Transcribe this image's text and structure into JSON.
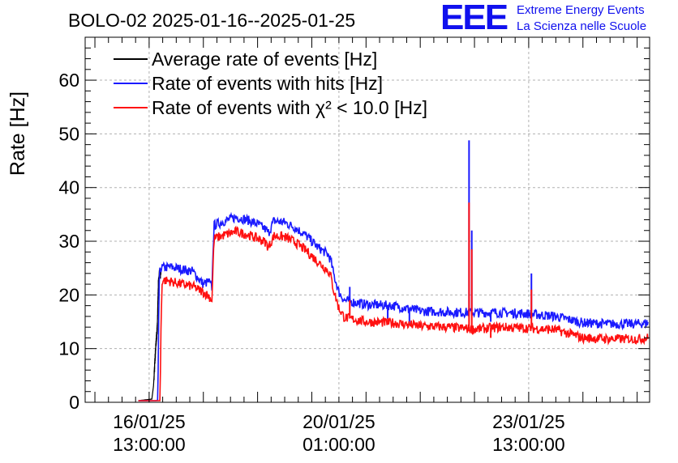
{
  "chart_data": {
    "type": "line",
    "title": "BOLO-02 2025-01-16--2025-01-25",
    "ylabel": "Rate [Hz]",
    "xlabel": "",
    "ylim": [
      0,
      68
    ],
    "y_ticks": [
      0,
      10,
      20,
      30,
      40,
      50,
      60
    ],
    "x_ticks": [
      {
        "line1": "16/01/25",
        "line2": "13:00:00",
        "t": 1.0
      },
      {
        "line1": "20/01/25",
        "line2": "01:00:00",
        "t": 4.5
      },
      {
        "line1": "23/01/25",
        "line2": "13:00:00",
        "t": 8.0
      }
    ],
    "x_unit": "days since 2025-01-15 13:00:00",
    "xlim": [
      -0.18,
      10.23
    ],
    "grid": true,
    "legend_position": "top-left",
    "series": [
      {
        "name": "Average rate of events [Hz]",
        "color": "#000000",
        "points": [
          [
            0.8,
            0.3
          ],
          [
            1.05,
            0.6
          ],
          [
            1.08,
            3
          ],
          [
            1.12,
            10
          ],
          [
            1.15,
            14
          ],
          [
            1.17,
            22
          ],
          [
            1.19,
            24
          ],
          [
            1.22,
            24
          ]
        ]
      },
      {
        "name": "Rate of events with hits [Hz]",
        "color": "#1a1aff",
        "points": [
          [
            0.8,
            0.3
          ],
          [
            1.12,
            0.3
          ],
          [
            1.16,
            0.4
          ],
          [
            1.18,
            20
          ],
          [
            1.2,
            25
          ],
          [
            1.4,
            25.2
          ],
          [
            1.6,
            24.8
          ],
          [
            1.8,
            24.4
          ],
          [
            2.0,
            22
          ],
          [
            2.1,
            22.5
          ],
          [
            2.16,
            21.3
          ],
          [
            2.18,
            29
          ],
          [
            2.2,
            33
          ],
          [
            2.4,
            33.8
          ],
          [
            2.6,
            34.5
          ],
          [
            2.8,
            34
          ],
          [
            3.0,
            33.2
          ],
          [
            3.15,
            32.2
          ],
          [
            3.2,
            31.5
          ],
          [
            3.3,
            33.8
          ],
          [
            3.5,
            33.5
          ],
          [
            3.7,
            32.5
          ],
          [
            3.9,
            31
          ],
          [
            4.1,
            29
          ],
          [
            4.3,
            27.5
          ],
          [
            4.35,
            26.5
          ],
          [
            4.4,
            24
          ],
          [
            4.5,
            20.5
          ],
          [
            4.6,
            19
          ],
          [
            5.0,
            18.2
          ],
          [
            5.5,
            18.0
          ],
          [
            6.0,
            17.0
          ],
          [
            6.5,
            16.8
          ],
          [
            7.0,
            16.7
          ],
          [
            7.5,
            16.7
          ],
          [
            8.0,
            16.5
          ],
          [
            8.5,
            16.0
          ],
          [
            9.0,
            14.8
          ],
          [
            9.5,
            14.6
          ],
          [
            10.0,
            14.6
          ],
          [
            10.2,
            14.8
          ]
        ],
        "spikes": [
          [
            4.7,
            21.5
          ],
          [
            5.4,
            15.5
          ],
          [
            5.8,
            14.5
          ],
          [
            6.9,
            48.8
          ],
          [
            6.95,
            32
          ],
          [
            7.3,
            15
          ],
          [
            8.05,
            24
          ],
          [
            8.2,
            15.5
          ]
        ]
      },
      {
        "name": "Rate of events with χ² < 10.0 [Hz]",
        "color": "#ff1010",
        "points": [
          [
            0.8,
            0.3
          ],
          [
            1.2,
            0.3
          ],
          [
            1.22,
            15
          ],
          [
            1.24,
            22.8
          ],
          [
            1.4,
            22.5
          ],
          [
            1.6,
            22
          ],
          [
            1.8,
            21.6
          ],
          [
            2.0,
            20.5
          ],
          [
            2.1,
            19.8
          ],
          [
            2.16,
            19
          ],
          [
            2.18,
            26
          ],
          [
            2.2,
            30.5
          ],
          [
            2.4,
            31.2
          ],
          [
            2.6,
            31.8
          ],
          [
            2.8,
            31.3
          ],
          [
            3.0,
            30.5
          ],
          [
            3.15,
            29.8
          ],
          [
            3.2,
            28.8
          ],
          [
            3.3,
            31
          ],
          [
            3.5,
            30.8
          ],
          [
            3.7,
            29.8
          ],
          [
            3.9,
            28.2
          ],
          [
            4.1,
            26.3
          ],
          [
            4.3,
            24.5
          ],
          [
            4.35,
            23.5
          ],
          [
            4.4,
            21
          ],
          [
            4.5,
            17.5
          ],
          [
            4.6,
            15.8
          ],
          [
            5.0,
            15.0
          ],
          [
            5.5,
            14.8
          ],
          [
            6.0,
            14.2
          ],
          [
            6.5,
            14.0
          ],
          [
            7.0,
            13.6
          ],
          [
            7.5,
            14.0
          ],
          [
            8.0,
            13.8
          ],
          [
            8.5,
            13.5
          ],
          [
            9.0,
            12.0
          ],
          [
            9.5,
            11.8
          ],
          [
            10.0,
            11.8
          ],
          [
            10.2,
            12.0
          ]
        ],
        "spikes": [
          [
            4.7,
            19
          ],
          [
            6.9,
            37.2
          ],
          [
            6.95,
            28.5
          ],
          [
            8.05,
            21
          ],
          [
            7.3,
            12
          ]
        ]
      }
    ]
  },
  "logo": {
    "mark": "EEE",
    "line1": "Extreme Energy Events",
    "line2": "La Scienza nelle Scuole"
  }
}
